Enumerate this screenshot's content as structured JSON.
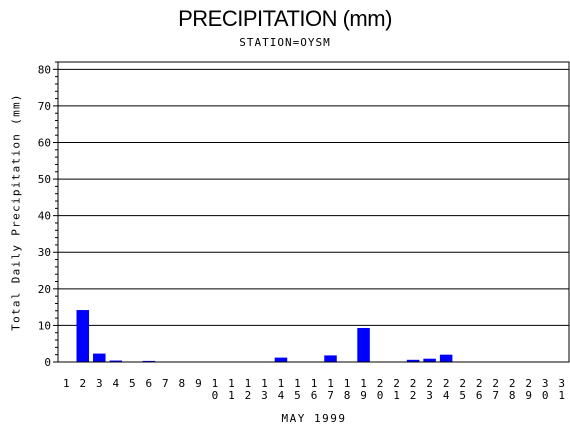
{
  "chart_data": {
    "type": "bar",
    "title": "PRECIPITATION (mm)",
    "subtitle": "STATION=OYSM",
    "xlabel": "MAY 1999",
    "ylabel": "Total Daily Precipitation (mm)",
    "ylim": [
      0,
      82
    ],
    "yticks": [
      "0",
      "10",
      "20",
      "30",
      "40",
      "50",
      "60",
      "70",
      "80"
    ],
    "grid": true,
    "categories": [
      "1",
      "2",
      "3",
      "4",
      "5",
      "6",
      "7",
      "8",
      "9",
      "10",
      "11",
      "12",
      "13",
      "14",
      "15",
      "16",
      "17",
      "18",
      "19",
      "20",
      "21",
      "22",
      "23",
      "24",
      "25",
      "26",
      "27",
      "28",
      "29",
      "30",
      "31"
    ],
    "values": [
      0,
      14.2,
      2.3,
      0.4,
      0,
      0.3,
      0,
      0,
      0,
      0,
      0,
      0,
      0,
      1.2,
      0,
      0,
      1.8,
      0,
      9.3,
      0,
      0,
      0.6,
      0.9,
      2.0,
      0,
      0,
      0,
      0,
      0,
      0,
      0
    ],
    "bar_color": "#0000ff"
  }
}
